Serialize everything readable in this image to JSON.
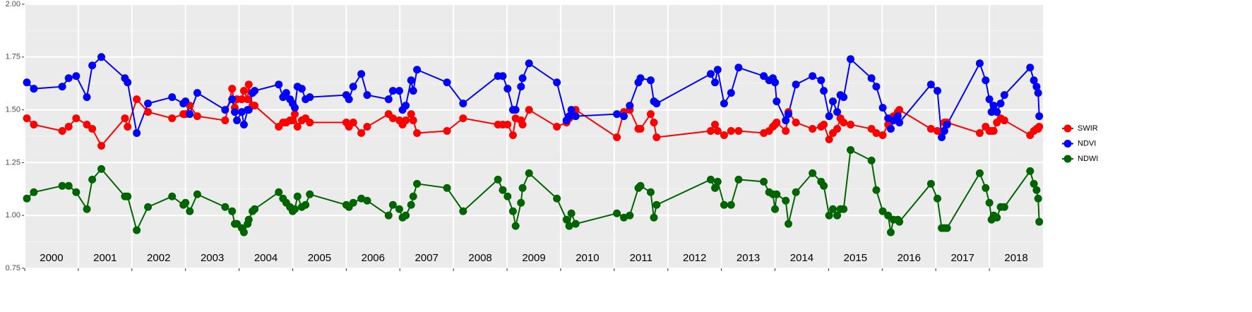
{
  "chart_data": {
    "type": "line",
    "x": [
      2000.04,
      2000.17,
      2000.7,
      2000.82,
      2000.96,
      2001.16,
      2001.26,
      2001.43,
      2001.87,
      2001.92,
      2002.09,
      2002.3,
      2002.75,
      2002.96,
      2003.0,
      2003.08,
      2003.22,
      2003.74,
      2003.87,
      2003.92,
      2003.96,
      2004.05,
      2004.09,
      2004.16,
      2004.18,
      2004.25,
      2004.29,
      2004.74,
      2004.82,
      2004.88,
      2004.95,
      2005.0,
      2005.04,
      2005.09,
      2005.17,
      2005.24,
      2005.32,
      2006.0,
      2006.05,
      2006.13,
      2006.28,
      2006.39,
      2006.79,
      2006.87,
      2006.99,
      2007.05,
      2007.11,
      2007.21,
      2007.25,
      2007.32,
      2007.88,
      2008.18,
      2008.83,
      2008.92,
      2009.01,
      2009.11,
      2009.16,
      2009.26,
      2009.29,
      2009.41,
      2009.93,
      2010.11,
      2010.16,
      2010.2,
      2010.28,
      2011.05,
      2011.18,
      2011.29,
      2011.45,
      2011.49,
      2011.68,
      2011.74,
      2011.79,
      2012.8,
      2012.88,
      2012.93,
      2013.05,
      2013.18,
      2013.32,
      2013.79,
      2013.89,
      2013.96,
      2014.0,
      2014.03,
      2014.2,
      2014.25,
      2014.39,
      2014.7,
      2014.86,
      2014.91,
      2015.01,
      2015.08,
      2015.16,
      2015.22,
      2015.28,
      2015.41,
      2015.8,
      2015.89,
      2016.01,
      2016.11,
      2016.16,
      2016.21,
      2016.29,
      2016.32,
      2016.91,
      2017.03,
      2017.11,
      2017.16,
      2017.21,
      2017.82,
      2017.93,
      2018.0,
      2018.04,
      2018.08,
      2018.14,
      2018.21,
      2018.28,
      2018.76,
      2018.83,
      2018.88,
      2018.91,
      2018.93
    ],
    "series": [
      {
        "name": "SWIR",
        "color": "#ff0000",
        "values": [
          1.46,
          1.43,
          1.4,
          1.42,
          1.46,
          1.43,
          1.41,
          1.33,
          1.46,
          1.42,
          1.55,
          1.49,
          1.46,
          1.48,
          1.48,
          1.52,
          1.47,
          1.45,
          1.6,
          1.51,
          1.55,
          1.55,
          1.59,
          1.55,
          1.62,
          1.52,
          1.52,
          1.42,
          1.44,
          1.44,
          1.45,
          1.45,
          1.48,
          1.42,
          1.45,
          1.46,
          1.44,
          1.44,
          1.42,
          1.44,
          1.39,
          1.42,
          1.48,
          1.46,
          1.45,
          1.43,
          1.45,
          1.48,
          1.45,
          1.39,
          1.4,
          1.46,
          1.43,
          1.43,
          1.43,
          1.38,
          1.46,
          1.45,
          1.43,
          1.5,
          1.42,
          1.44,
          1.46,
          1.47,
          1.5,
          1.37,
          1.49,
          1.5,
          1.41,
          1.41,
          1.48,
          1.44,
          1.37,
          1.4,
          1.43,
          1.4,
          1.38,
          1.4,
          1.4,
          1.39,
          1.4,
          1.42,
          1.43,
          1.44,
          1.4,
          1.49,
          1.44,
          1.41,
          1.42,
          1.43,
          1.36,
          1.39,
          1.41,
          1.46,
          1.44,
          1.43,
          1.41,
          1.39,
          1.38,
          1.43,
          1.45,
          1.47,
          1.49,
          1.5,
          1.41,
          1.4,
          1.39,
          1.44,
          1.44,
          1.39,
          1.42,
          1.4,
          1.4,
          1.4,
          1.44,
          1.46,
          1.45,
          1.38,
          1.4,
          1.41,
          1.41,
          1.42
        ]
      },
      {
        "name": "NDVI",
        "color": "#0000ff",
        "values": [
          1.63,
          1.6,
          1.61,
          1.65,
          1.66,
          1.56,
          1.71,
          1.75,
          1.65,
          1.63,
          1.39,
          1.53,
          1.56,
          1.53,
          1.54,
          1.48,
          1.58,
          1.5,
          1.55,
          1.49,
          1.45,
          1.49,
          1.43,
          1.5,
          1.5,
          1.58,
          1.59,
          1.62,
          1.56,
          1.58,
          1.55,
          1.53,
          1.51,
          1.61,
          1.6,
          1.55,
          1.56,
          1.57,
          1.55,
          1.61,
          1.67,
          1.57,
          1.55,
          1.59,
          1.59,
          1.5,
          1.52,
          1.64,
          1.59,
          1.69,
          1.63,
          1.53,
          1.66,
          1.66,
          1.6,
          1.5,
          1.5,
          1.61,
          1.65,
          1.72,
          1.63,
          1.45,
          1.47,
          1.5,
          1.47,
          1.48,
          1.47,
          1.52,
          1.63,
          1.65,
          1.64,
          1.54,
          1.53,
          1.67,
          1.63,
          1.69,
          1.53,
          1.58,
          1.7,
          1.66,
          1.64,
          1.65,
          1.63,
          1.54,
          1.45,
          1.48,
          1.62,
          1.66,
          1.64,
          1.59,
          1.47,
          1.54,
          1.49,
          1.57,
          1.56,
          1.74,
          1.65,
          1.61,
          1.51,
          1.46,
          1.41,
          1.45,
          1.47,
          1.44,
          1.62,
          1.59,
          1.37,
          1.4,
          1.43,
          1.72,
          1.64,
          1.55,
          1.49,
          1.52,
          1.49,
          1.53,
          1.57,
          1.7,
          1.64,
          1.61,
          1.58,
          1.47
        ]
      },
      {
        "name": "NDWI",
        "color": "#006400",
        "values": [
          1.08,
          1.11,
          1.14,
          1.14,
          1.11,
          1.03,
          1.17,
          1.22,
          1.09,
          1.09,
          0.93,
          1.04,
          1.09,
          1.05,
          1.06,
          1.02,
          1.1,
          1.04,
          1.02,
          0.96,
          0.96,
          0.94,
          0.92,
          0.96,
          0.98,
          1.02,
          1.03,
          1.11,
          1.08,
          1.06,
          1.04,
          1.02,
          1.03,
          1.09,
          1.04,
          1.05,
          1.1,
          1.05,
          1.04,
          1.06,
          1.08,
          1.07,
          1.0,
          1.05,
          1.03,
          0.99,
          1.0,
          1.05,
          1.09,
          1.15,
          1.13,
          1.02,
          1.17,
          1.12,
          1.09,
          1.02,
          0.95,
          1.06,
          1.13,
          1.2,
          1.08,
          0.98,
          0.95,
          1.01,
          0.96,
          1.01,
          0.99,
          1.0,
          1.13,
          1.14,
          1.11,
          0.99,
          1.05,
          1.17,
          1.13,
          1.16,
          1.05,
          1.05,
          1.17,
          1.16,
          1.11,
          1.1,
          1.03,
          1.1,
          1.07,
          0.96,
          1.11,
          1.2,
          1.16,
          1.14,
          1.0,
          1.03,
          1.0,
          1.03,
          1.03,
          1.31,
          1.26,
          1.12,
          1.02,
          1.0,
          0.92,
          0.98,
          0.98,
          0.97,
          1.15,
          1.08,
          0.94,
          0.94,
          0.94,
          1.2,
          1.13,
          1.06,
          0.98,
          1.0,
          0.99,
          1.04,
          1.04,
          1.21,
          1.15,
          1.12,
          1.08,
          0.97
        ]
      }
    ],
    "xlim": [
      2000,
      2019
    ],
    "xticks": [
      2000,
      2001,
      2002,
      2003,
      2004,
      2005,
      2006,
      2007,
      2008,
      2009,
      2010,
      2011,
      2012,
      2013,
      2014,
      2015,
      2016,
      2017,
      2018
    ],
    "ylim": [
      0.75,
      2
    ],
    "yticks": [
      0.75,
      {
        "value": 1,
        "label": "1.00"
      },
      1.25,
      {
        "value": 1.5,
        "label": "1.50"
      },
      1.75,
      {
        "value": 2,
        "label": "2.00"
      }
    ],
    "grid": true,
    "legend": "right"
  }
}
